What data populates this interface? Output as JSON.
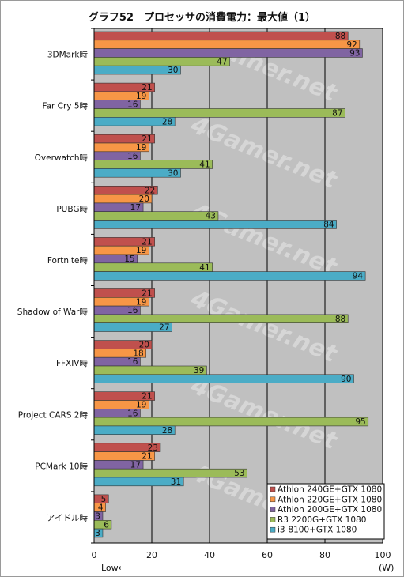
{
  "chart_data": {
    "type": "bar",
    "orientation": "horizontal",
    "title": "グラフ52　プロセッサの消費電力：最大値（1）",
    "categories": [
      "3DMark時",
      "Far Cry 5時",
      "Overwatch時",
      "PUBG時",
      "Fortnite時",
      "Shadow of War時",
      "FFXIV時",
      "Project CARS 2時",
      "PCMark 10時",
      "アイドル時"
    ],
    "series": [
      {
        "name": "Athlon 240GE+GTX 1080",
        "color": "#c0504d",
        "values": [
          88,
          21,
          21,
          22,
          21,
          21,
          20,
          21,
          23,
          5
        ]
      },
      {
        "name": "Athlon 220GE+GTX 1080",
        "color": "#f79646",
        "values": [
          92,
          19,
          19,
          20,
          19,
          19,
          18,
          19,
          21,
          4
        ]
      },
      {
        "name": "Athlon 200GE+GTX 1080",
        "color": "#8064a2",
        "values": [
          93,
          16,
          16,
          17,
          15,
          16,
          16,
          16,
          17,
          3
        ]
      },
      {
        "name": "R3 2200G+GTX 1080",
        "color": "#9bbb59",
        "values": [
          47,
          87,
          41,
          43,
          41,
          88,
          39,
          95,
          53,
          6
        ]
      },
      {
        "name": "i3-8100+GTX 1080",
        "color": "#4bacc6",
        "values": [
          30,
          28,
          30,
          84,
          94,
          27,
          90,
          28,
          31,
          3
        ]
      }
    ],
    "xlim": [
      0,
      100
    ],
    "xticks": [
      "0",
      "20",
      "40",
      "60",
      "80",
      "100"
    ],
    "unit_label": "(W)",
    "direction_label": "Low←",
    "watermark": "4Gamer.net",
    "grid": true,
    "legend_position": "bottom-right"
  }
}
